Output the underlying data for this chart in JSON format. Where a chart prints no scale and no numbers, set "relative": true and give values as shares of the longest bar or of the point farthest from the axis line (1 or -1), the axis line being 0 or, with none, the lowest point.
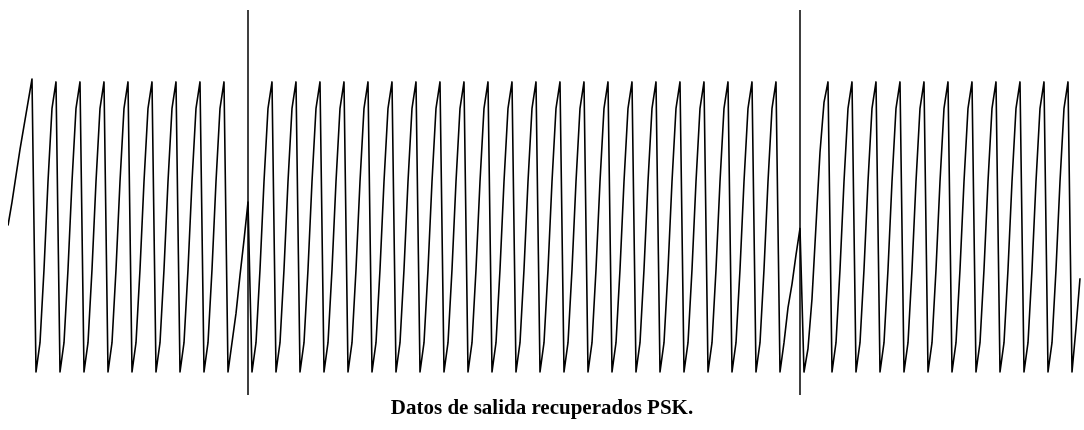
{
  "chart_data": {
    "type": "line",
    "title": "Datos de salida recuperados PSK.",
    "relative": true,
    "categories": [
      null,
      null,
      null,
      null,
      null,
      null,
      null,
      null,
      null,
      null,
      null,
      null,
      null,
      null,
      null,
      null,
      null,
      null,
      null,
      null,
      null,
      null,
      null,
      null,
      null,
      null,
      null,
      null,
      null,
      null,
      null,
      null,
      null,
      null,
      null,
      null,
      null,
      null,
      null,
      null,
      null,
      null,
      null,
      null,
      null,
      null,
      null,
      null,
      null,
      null,
      null,
      null,
      null,
      null,
      null,
      null,
      null,
      null,
      null,
      null,
      null,
      null,
      null,
      null,
      null,
      null,
      null,
      null,
      null,
      null,
      null,
      null,
      null,
      null,
      null,
      null,
      null,
      null,
      null,
      null,
      null,
      null,
      null,
      null,
      null,
      null,
      null,
      null,
      null,
      null,
      null,
      null,
      null,
      null,
      null,
      null,
      null,
      null,
      null,
      null,
      null,
      null,
      null,
      null,
      null,
      null,
      null,
      null,
      null,
      null,
      null,
      null,
      null,
      null,
      null,
      null,
      null,
      null,
      null,
      null,
      null,
      null,
      null,
      null,
      null,
      null,
      null,
      null,
      null,
      null,
      null,
      null,
      null,
      null,
      null,
      null,
      null,
      null,
      null,
      null,
      null,
      null,
      null,
      null,
      null,
      null,
      null,
      null,
      null,
      null,
      null,
      null,
      null,
      null,
      null,
      null,
      null,
      null,
      null,
      null,
      null,
      null,
      null,
      null,
      null,
      null,
      null,
      null,
      null,
      null,
      null,
      null,
      null,
      null,
      null,
      null,
      null,
      null,
      null,
      null,
      null,
      null,
      null,
      null,
      null,
      null,
      null,
      null,
      null,
      null,
      null,
      null,
      null,
      null,
      null,
      null,
      null,
      null,
      null,
      null,
      null,
      null,
      null,
      null,
      null,
      null,
      null,
      null,
      null,
      null,
      null,
      null,
      null,
      null,
      null,
      null,
      null,
      null,
      null,
      null,
      null,
      null,
      null,
      null,
      null,
      null,
      null,
      null,
      null,
      null,
      null,
      null,
      null,
      null,
      null,
      null,
      null,
      null,
      null,
      null,
      null,
      null,
      null,
      null,
      null,
      null,
      null,
      null,
      null,
      null,
      null,
      null,
      null,
      null,
      null,
      null,
      null,
      null,
      null,
      null,
      null,
      null,
      null,
      null,
      null,
      null,
      null,
      null,
      null
    ],
    "series": [
      {
        "color": "#000000",
        "values": [
          0.5,
          0.58,
          0.67,
          0.76,
          0.84,
          0.92,
          1,
          0,
          0.1,
          0.35,
          0.65,
          0.9,
          0.99,
          0,
          0.1,
          0.35,
          0.65,
          0.9,
          0.99,
          0,
          0.1,
          0.35,
          0.65,
          0.9,
          0.99,
          0,
          0.1,
          0.35,
          0.65,
          0.9,
          0.99,
          0,
          0.1,
          0.35,
          0.65,
          0.9,
          0.99,
          0,
          0.1,
          0.35,
          0.65,
          0.9,
          0.99,
          0,
          0.1,
          0.35,
          0.65,
          0.9,
          0.99,
          0,
          0.1,
          0.35,
          0.65,
          0.9,
          0.99,
          0,
          0.1,
          0.2,
          0.33,
          0.45,
          0.58,
          0,
          0.1,
          0.35,
          0.65,
          0.9,
          0.99,
          0,
          0.1,
          0.35,
          0.65,
          0.9,
          0.99,
          0,
          0.1,
          0.35,
          0.65,
          0.9,
          0.99,
          0,
          0.1,
          0.35,
          0.65,
          0.9,
          0.99,
          0,
          0.1,
          0.35,
          0.65,
          0.9,
          0.99,
          0,
          0.1,
          0.35,
          0.65,
          0.9,
          0.99,
          0,
          0.1,
          0.35,
          0.65,
          0.9,
          0.99,
          0,
          0.1,
          0.35,
          0.65,
          0.9,
          0.99,
          0,
          0.1,
          0.35,
          0.65,
          0.9,
          0.99,
          0,
          0.1,
          0.35,
          0.65,
          0.9,
          0.99,
          0,
          0.1,
          0.35,
          0.65,
          0.9,
          0.99,
          0,
          0.1,
          0.35,
          0.65,
          0.9,
          0.99,
          0,
          0.1,
          0.35,
          0.65,
          0.9,
          0.99,
          0,
          0.1,
          0.35,
          0.65,
          0.9,
          0.99,
          0,
          0.1,
          0.35,
          0.65,
          0.9,
          0.99,
          0,
          0.1,
          0.35,
          0.65,
          0.9,
          0.99,
          0,
          0.1,
          0.35,
          0.65,
          0.9,
          0.99,
          0,
          0.1,
          0.35,
          0.65,
          0.9,
          0.99,
          0,
          0.1,
          0.35,
          0.65,
          0.9,
          0.99,
          0,
          0.1,
          0.35,
          0.65,
          0.9,
          0.99,
          0,
          0.1,
          0.35,
          0.65,
          0.9,
          0.99,
          0,
          0.1,
          0.35,
          0.65,
          0.9,
          0.99,
          0,
          0.1,
          0.22,
          0.3,
          0.4,
          0.49,
          0,
          0.08,
          0.25,
          0.5,
          0.75,
          0.92,
          0.99,
          0,
          0.1,
          0.35,
          0.65,
          0.9,
          0.99,
          0,
          0.1,
          0.35,
          0.65,
          0.9,
          0.99,
          0,
          0.1,
          0.35,
          0.65,
          0.9,
          0.99,
          0,
          0.1,
          0.35,
          0.65,
          0.9,
          0.99,
          0,
          0.1,
          0.35,
          0.65,
          0.9,
          0.99,
          0,
          0.1,
          0.35,
          0.65,
          0.9,
          0.99,
          0,
          0.1,
          0.35,
          0.65,
          0.9,
          0.99,
          0,
          0.1,
          0.35,
          0.65,
          0.9,
          0.99,
          0,
          0.1,
          0.35,
          0.65,
          0.9,
          0.99,
          0,
          0.1,
          0.35,
          0.65,
          0.9,
          0.99,
          0,
          0.15,
          0.32
        ]
      }
    ]
  }
}
